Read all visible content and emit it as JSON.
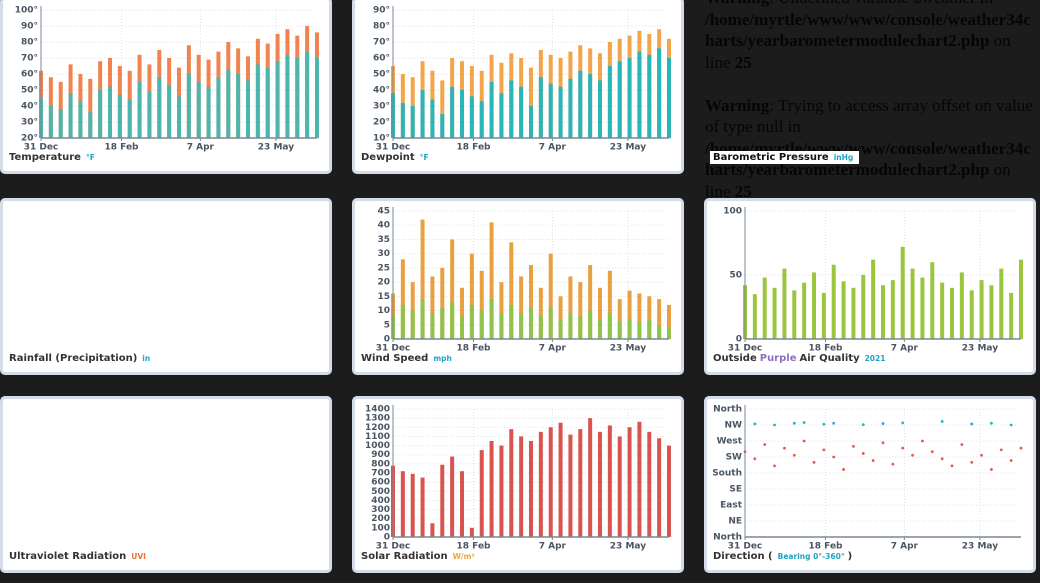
{
  "chart_data": [
    {
      "type": "bar",
      "title": "Temperature",
      "unit": "°F",
      "unit_color": "#1fa3c9",
      "x": [
        0,
        6,
        12,
        18,
        24,
        30,
        36,
        42,
        48,
        54,
        60,
        66,
        72,
        78,
        84,
        90,
        96,
        102,
        108,
        114,
        120,
        126,
        132,
        138,
        144,
        150,
        156,
        162,
        168
      ],
      "xlim": [
        0,
        168
      ],
      "xticks": [
        {
          "value": 0,
          "label": "31 Dec"
        },
        {
          "value": 49,
          "label": "18 Feb"
        },
        {
          "value": 97,
          "label": "7 Apr"
        },
        {
          "value": 143,
          "label": "23 May"
        }
      ],
      "ylim": [
        20,
        100
      ],
      "yticks": [
        {
          "value": 20,
          "label": "20°"
        },
        {
          "value": 30,
          "label": "30°"
        },
        {
          "value": 40,
          "label": "40°"
        },
        {
          "value": 50,
          "label": "50°"
        },
        {
          "value": 60,
          "label": "60°"
        },
        {
          "value": 70,
          "label": "70°"
        },
        {
          "value": 80,
          "label": "80°"
        },
        {
          "value": 90,
          "label": "90°"
        },
        {
          "value": 100,
          "label": "100°"
        }
      ],
      "grid": true,
      "series": [
        {
          "color": "#f0834f",
          "values": [
            62,
            58,
            55,
            66,
            60,
            57,
            68,
            70,
            65,
            62,
            72,
            66,
            75,
            70,
            64,
            78,
            72,
            69,
            74,
            80,
            76,
            71,
            82,
            79,
            85,
            88,
            84,
            90,
            86
          ]
        },
        {
          "color": "#4db6ac",
          "values": [
            45,
            40,
            38,
            48,
            43,
            36,
            50,
            52,
            47,
            44,
            55,
            49,
            58,
            53,
            46,
            60,
            55,
            52,
            58,
            63,
            60,
            56,
            66,
            64,
            68,
            72,
            70,
            74,
            70
          ]
        }
      ]
    },
    {
      "type": "bar",
      "title": "Dewpoint",
      "unit": "°F",
      "unit_color": "#1fa3c9",
      "x": [
        0,
        6,
        12,
        18,
        24,
        30,
        36,
        42,
        48,
        54,
        60,
        66,
        72,
        78,
        84,
        90,
        96,
        102,
        108,
        114,
        120,
        126,
        132,
        138,
        144,
        150,
        156,
        162,
        168
      ],
      "xlim": [
        0,
        168
      ],
      "xticks": [
        {
          "value": 0,
          "label": "31 Dec"
        },
        {
          "value": 49,
          "label": "18 Feb"
        },
        {
          "value": 97,
          "label": "7 Apr"
        },
        {
          "value": 143,
          "label": "23 May"
        }
      ],
      "ylim": [
        10,
        90
      ],
      "yticks": [
        {
          "value": 10,
          "label": "10°"
        },
        {
          "value": 20,
          "label": "20°"
        },
        {
          "value": 30,
          "label": "30°"
        },
        {
          "value": 40,
          "label": "40°"
        },
        {
          "value": 50,
          "label": "50°"
        },
        {
          "value": 60,
          "label": "60°"
        },
        {
          "value": 70,
          "label": "70°"
        },
        {
          "value": 80,
          "label": "80°"
        },
        {
          "value": 90,
          "label": "90°"
        }
      ],
      "grid": true,
      "series": [
        {
          "color": "#f4a54a",
          "values": [
            55,
            50,
            48,
            58,
            52,
            46,
            60,
            58,
            55,
            52,
            62,
            57,
            63,
            60,
            54,
            65,
            62,
            60,
            64,
            68,
            66,
            63,
            70,
            72,
            74,
            77,
            75,
            78,
            72
          ]
        },
        {
          "color": "#2bb5b8",
          "values": [
            38,
            32,
            30,
            40,
            34,
            25,
            42,
            40,
            36,
            33,
            45,
            38,
            46,
            42,
            30,
            48,
            44,
            42,
            47,
            52,
            50,
            46,
            55,
            58,
            60,
            64,
            62,
            66,
            60
          ]
        }
      ]
    },
    {
      "title": "Barometric Pressure",
      "unit": "inHg",
      "unit_color": "#1fa3c9"
    },
    {
      "title": "Rainfall (Precipitation)",
      "unit": "in",
      "unit_color": "#1fa3c9"
    },
    {
      "type": "bar",
      "title": "Wind Speed",
      "unit": "mph",
      "unit_color": "#1fa3c9",
      "x": [
        0,
        6,
        12,
        18,
        24,
        30,
        36,
        42,
        48,
        54,
        60,
        66,
        72,
        78,
        84,
        90,
        96,
        102,
        108,
        114,
        120,
        126,
        132,
        138,
        144,
        150,
        156,
        162,
        168
      ],
      "xlim": [
        0,
        168
      ],
      "xticks": [
        {
          "value": 0,
          "label": "31 Dec"
        },
        {
          "value": 49,
          "label": "18 Feb"
        },
        {
          "value": 97,
          "label": "7 Apr"
        },
        {
          "value": 143,
          "label": "23 May"
        }
      ],
      "ylim": [
        0,
        45
      ],
      "yticks": [
        0,
        5,
        10,
        15,
        20,
        25,
        30,
        35,
        40,
        45
      ],
      "grid": true,
      "series": [
        {
          "color": "#e9a040",
          "values": [
            16,
            28,
            20,
            42,
            22,
            25,
            35,
            18,
            30,
            24,
            41,
            20,
            34,
            22,
            26,
            18,
            30,
            15,
            22,
            20,
            26,
            18,
            24,
            14,
            17,
            16,
            15,
            14,
            12
          ]
        },
        {
          "color": "#8fc34a",
          "values": [
            8,
            12,
            10,
            14,
            9,
            11,
            13,
            8,
            12,
            10,
            14,
            9,
            12,
            9,
            11,
            8,
            11,
            7,
            9,
            8,
            10,
            7,
            9,
            6,
            7,
            6,
            7,
            5,
            4
          ]
        }
      ]
    },
    {
      "type": "bar",
      "title_parts": [
        "Outside",
        "Purple",
        "Air Quality"
      ],
      "title_part_colors": [
        "#333333",
        "#8e6fc1",
        "#333333"
      ],
      "unit": "2021",
      "unit_color": "#1fa3c9",
      "x": [
        0,
        6,
        12,
        18,
        24,
        30,
        36,
        42,
        48,
        54,
        60,
        66,
        72,
        78,
        84,
        90,
        96,
        102,
        108,
        114,
        120,
        126,
        132,
        138,
        144,
        150,
        156,
        162,
        168
      ],
      "xlim": [
        0,
        168
      ],
      "xticks": [
        {
          "value": 0,
          "label": "31 Dec"
        },
        {
          "value": 49,
          "label": "18 Feb"
        },
        {
          "value": 97,
          "label": "7 Apr"
        },
        {
          "value": 143,
          "label": "23 May"
        }
      ],
      "ylim": [
        0,
        100
      ],
      "yticks": [
        0,
        50,
        100
      ],
      "grid": true,
      "series": [
        {
          "color": "#9bc53d",
          "values": [
            42,
            35,
            48,
            40,
            55,
            38,
            44,
            52,
            36,
            58,
            45,
            40,
            50,
            62,
            42,
            46,
            72,
            55,
            48,
            60,
            44,
            40,
            52,
            38,
            46,
            42,
            55,
            36,
            62
          ]
        }
      ]
    },
    {
      "title": "Ultraviolet Radiation",
      "unit": "UVI",
      "unit_color": "#f0703a"
    },
    {
      "type": "bar",
      "title": "Solar Radiation",
      "unit": "W/m²",
      "unit_color": "#f4a33a",
      "x": [
        0,
        6,
        12,
        18,
        24,
        30,
        36,
        42,
        48,
        54,
        60,
        66,
        72,
        78,
        84,
        90,
        96,
        102,
        108,
        114,
        120,
        126,
        132,
        138,
        144,
        150,
        156,
        162,
        168
      ],
      "xlim": [
        0,
        168
      ],
      "xticks": [
        {
          "value": 0,
          "label": "31 Dec"
        },
        {
          "value": 49,
          "label": "18 Feb"
        },
        {
          "value": 97,
          "label": "7 Apr"
        },
        {
          "value": 143,
          "label": "23 May"
        }
      ],
      "ylim": [
        0,
        1400
      ],
      "yticks": [
        0,
        100,
        200,
        300,
        400,
        500,
        600,
        700,
        800,
        900,
        1000,
        1100,
        1200,
        1300,
        1400
      ],
      "grid": true,
      "series": [
        {
          "color": "#d9534f",
          "values": [
            780,
            720,
            690,
            650,
            150,
            790,
            880,
            720,
            100,
            950,
            1050,
            1000,
            1180,
            1100,
            1050,
            1150,
            1200,
            1250,
            1120,
            1180,
            1300,
            1150,
            1220,
            1100,
            1200,
            1260,
            1150,
            1080,
            1000
          ]
        }
      ]
    },
    {
      "type": "scatter",
      "title": "Direction (",
      "unit": "Bearing 0°-360°",
      "unit_color": "#1fa3c9",
      "title_suffix": ")",
      "xlim": [
        0,
        168
      ],
      "xticks": [
        {
          "value": 0,
          "label": "31 Dec"
        },
        {
          "value": 49,
          "label": "18 Feb"
        },
        {
          "value": 97,
          "label": "7 Apr"
        },
        {
          "value": 143,
          "label": "23 May"
        }
      ],
      "ylim": [
        0,
        360
      ],
      "yticks": [
        {
          "value": 0,
          "label": "North"
        },
        {
          "value": 45,
          "label": "NE"
        },
        {
          "value": 90,
          "label": "East"
        },
        {
          "value": 135,
          "label": "SE"
        },
        {
          "value": 180,
          "label": "South"
        },
        {
          "value": 225,
          "label": "SW"
        },
        {
          "value": 270,
          "label": "West"
        },
        {
          "value": 315,
          "label": "NW"
        },
        {
          "value": 360,
          "label": "North"
        }
      ],
      "grid": true,
      "series": [
        {
          "color": "#e8574a",
          "x": [
            0,
            6,
            12,
            18,
            24,
            30,
            36,
            42,
            48,
            54,
            60,
            66,
            72,
            78,
            84,
            90,
            96,
            102,
            108,
            114,
            120,
            126,
            132,
            138,
            144,
            150,
            156,
            162,
            168
          ],
          "values": [
            240,
            220,
            260,
            200,
            250,
            230,
            270,
            210,
            245,
            225,
            190,
            255,
            235,
            215,
            265,
            205,
            250,
            230,
            270,
            240,
            220,
            200,
            260,
            210,
            230,
            190,
            245,
            215,
            250
          ]
        },
        {
          "color": "#1fb6c9",
          "x": [
            6,
            18,
            30,
            36,
            48,
            54,
            72,
            84,
            96,
            120,
            138,
            150,
            162
          ],
          "values": [
            318,
            315,
            320,
            322,
            317,
            320,
            316,
            319,
            321,
            325,
            318,
            320,
            315
          ]
        }
      ]
    }
  ],
  "warnings": [
    {
      "label": "Warning",
      "message": ": Undefined variable $weather in",
      "file": "/home/myrtle/www/www/console/weather34charts/yearbarometermodulechart2.php",
      "on": "on line",
      "line": 25
    },
    {
      "label": "Warning",
      "message": ": Trying to access array offset on value of type null in",
      "file": "/home/myrtle/www/www/console/weather34charts/yearbarometermodulechart2.php",
      "on": "on line",
      "line": 25
    }
  ]
}
